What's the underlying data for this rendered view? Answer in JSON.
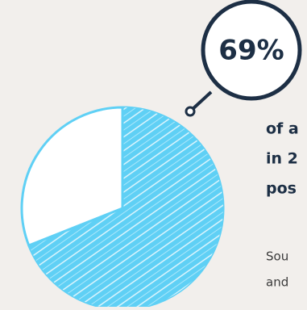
{
  "chart_data": {
    "type": "pie",
    "values": [
      69,
      31
    ],
    "value_labels": [
      "69%",
      null
    ],
    "colors": [
      "#5fd0f5",
      "#ffffff"
    ],
    "hatched": [
      true,
      false
    ],
    "text_lines": [
      "of a",
      "in 2",
      "pos"
    ],
    "source_lines": [
      "Sou",
      "and"
    ]
  }
}
